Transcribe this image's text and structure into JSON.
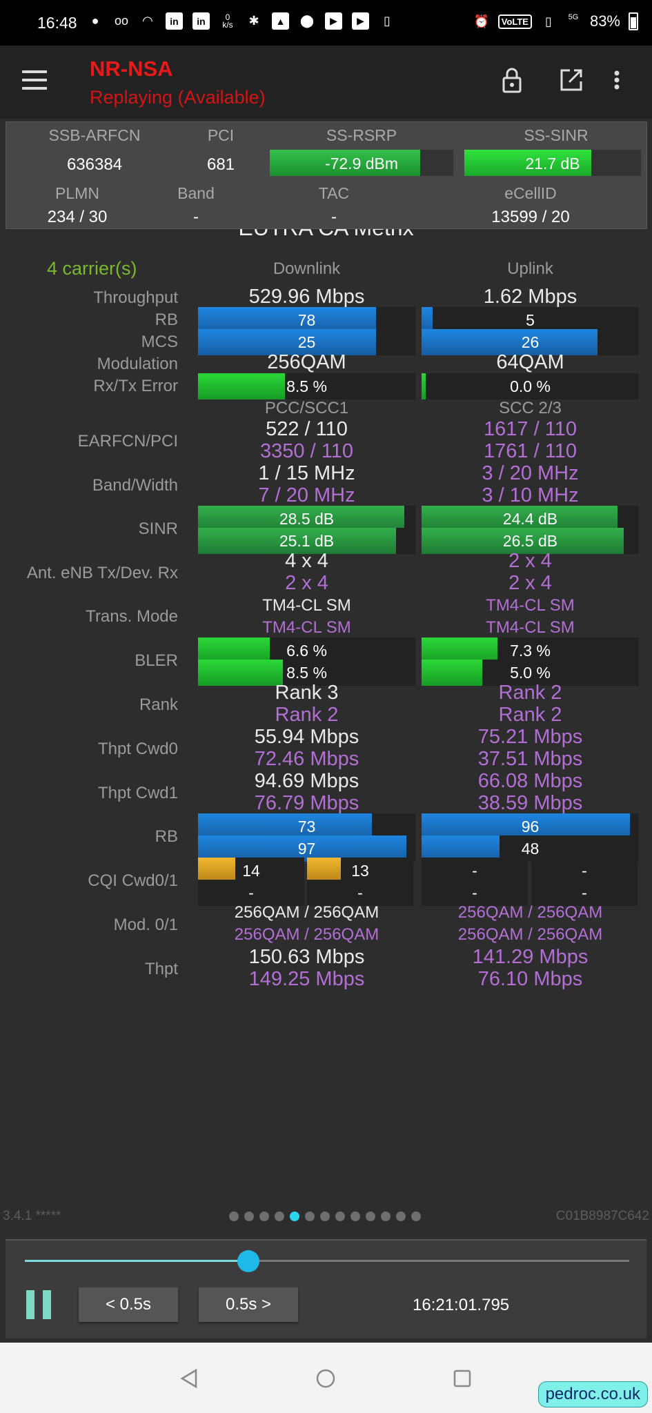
{
  "status_bar": {
    "time": "16:48",
    "speed_label": "0\nk/s",
    "network": "5G",
    "volte": "VoLTE",
    "battery": "83%"
  },
  "app_bar": {
    "title": "NR-NSA",
    "subtitle": "Replaying (Available)"
  },
  "summary": {
    "labels_row1": [
      "SSB-ARFCN",
      "PCI",
      "SS-RSRP",
      "SS-SINR"
    ],
    "values_row1": [
      "636384",
      "681"
    ],
    "rsrp": {
      "text": "-72.9 dBm",
      "level": 0.82
    },
    "sinr": {
      "text": "21.7 dB",
      "level": 0.72
    },
    "labels_row2": [
      "PLMN",
      "Band",
      "TAC",
      "eCellID"
    ],
    "values_row2": [
      "234 / 30",
      "-",
      "-",
      "13599 / 20"
    ]
  },
  "page": {
    "partial_title": "EUTRA CA Metrix",
    "carriers": "4 carrier(s)",
    "col_downlink": "Downlink",
    "col_uplink": "Uplink",
    "throughput": {
      "label": "Throughput",
      "dl": "529.96 Mbps",
      "ul": "1.62 Mbps"
    },
    "rb": {
      "label": "RB",
      "dl": "78",
      "dl_level": 0.82,
      "ul": "5",
      "ul_level": 0.05
    },
    "mcs": {
      "label": "MCS",
      "dl": "25",
      "dl_level": 0.82,
      "ul": "26",
      "ul_level": 0.81
    },
    "modulation": {
      "label": "Modulation",
      "dl": "256QAM",
      "ul": "64QAM"
    },
    "error": {
      "label": "Rx/Tx Error",
      "dl": "8.5 %",
      "dl_level": 0.4,
      "ul": "0.0 %",
      "ul_level": 0.02
    },
    "col_pcc": "PCC/SCC1",
    "col_scc": "SCC 2/3",
    "earfcn": {
      "label": "EARFCN/PCI",
      "a1": "522 / 110",
      "a2": "3350 / 110",
      "b1": "1617 / 110",
      "b2": "1761 / 110"
    },
    "band": {
      "label": "Band/Width",
      "a1": "1 / 15 MHz",
      "a2": "7 / 20 MHz",
      "b1": "3 / 20 MHz",
      "b2": "3 / 10 MHz"
    },
    "sinr": {
      "label": "SINR",
      "a1": "28.5 dB",
      "a1_level": 0.95,
      "a2": "25.1 dB",
      "a2_level": 0.91,
      "b1": "24.4 dB",
      "b1_level": 0.9,
      "b2": "26.5 dB",
      "b2_level": 0.93
    },
    "ant": {
      "label": "Ant. eNB Tx/Dev. Rx",
      "a1": "4 x 4",
      "a2": "2 x 4",
      "b1": "2 x 4",
      "b2": "2 x 4"
    },
    "trans": {
      "label": "Trans. Mode",
      "a1": "TM4-CL SM",
      "a2": "TM4-CL SM",
      "b1": "TM4-CL SM",
      "b2": "TM4-CL SM"
    },
    "bler": {
      "label": "BLER",
      "a1": "6.6 %",
      "a1_level": 0.33,
      "a2": "8.5 %",
      "a2_level": 0.39,
      "b1": "7.3 %",
      "b1_level": 0.35,
      "b2": "5.0 %",
      "b2_level": 0.28
    },
    "rank": {
      "label": "Rank",
      "a1": "Rank 3",
      "a2": "Rank 2",
      "b1": "Rank 2",
      "b2": "Rank 2"
    },
    "cwd0": {
      "label": "Thpt Cwd0",
      "a1": "55.94 Mbps",
      "a2": "72.46 Mbps",
      "b1": "75.21 Mbps",
      "b2": "37.51 Mbps"
    },
    "cwd1": {
      "label": "Thpt Cwd1",
      "a1": "94.69 Mbps",
      "a2": "76.79 Mbps",
      "b1": "66.08 Mbps",
      "b2": "38.59 Mbps"
    },
    "rb2": {
      "label": "RB",
      "a1": "73",
      "a1_level": 0.8,
      "a2": "97",
      "a2_level": 0.96,
      "b1": "96",
      "b1_level": 0.96,
      "b2": "48",
      "b2_level": 0.36
    },
    "cqi": {
      "label": "CQI Cwd0/1",
      "a1": "14",
      "a1_level": 0.35,
      "a1b": "13",
      "a1b_level": 0.32,
      "a2": "-",
      "a2b": "-",
      "b1": "-",
      "b1b": "-",
      "b2": "-",
      "b2b": "-"
    },
    "mod01": {
      "label": "Mod. 0/1",
      "a1": "256QAM / 256QAM",
      "a2": "256QAM / 256QAM",
      "b1": "256QAM / 256QAM",
      "b2": "256QAM / 256QAM"
    },
    "thpt": {
      "label": "Thpt",
      "a1": "150.63 Mbps",
      "a2": "149.25 Mbps",
      "b1": "141.29 Mbps",
      "b2": "76.10 Mbps"
    }
  },
  "footer": {
    "version": "3.4.1 *****",
    "cell_id": "C01B8987C642",
    "page_count": 13,
    "active_page": 5
  },
  "player": {
    "progress": 0.37,
    "back_label": "< 0.5s",
    "fwd_label": "0.5s >",
    "time": "16:21:01.795"
  },
  "watermark": "pedroc.co.uk",
  "colors": {
    "title_red": "#e81919",
    "secondary_purple": "#b46fd6",
    "carrier_green": "#7cb82f",
    "active_dot": "#2ed3f0"
  }
}
